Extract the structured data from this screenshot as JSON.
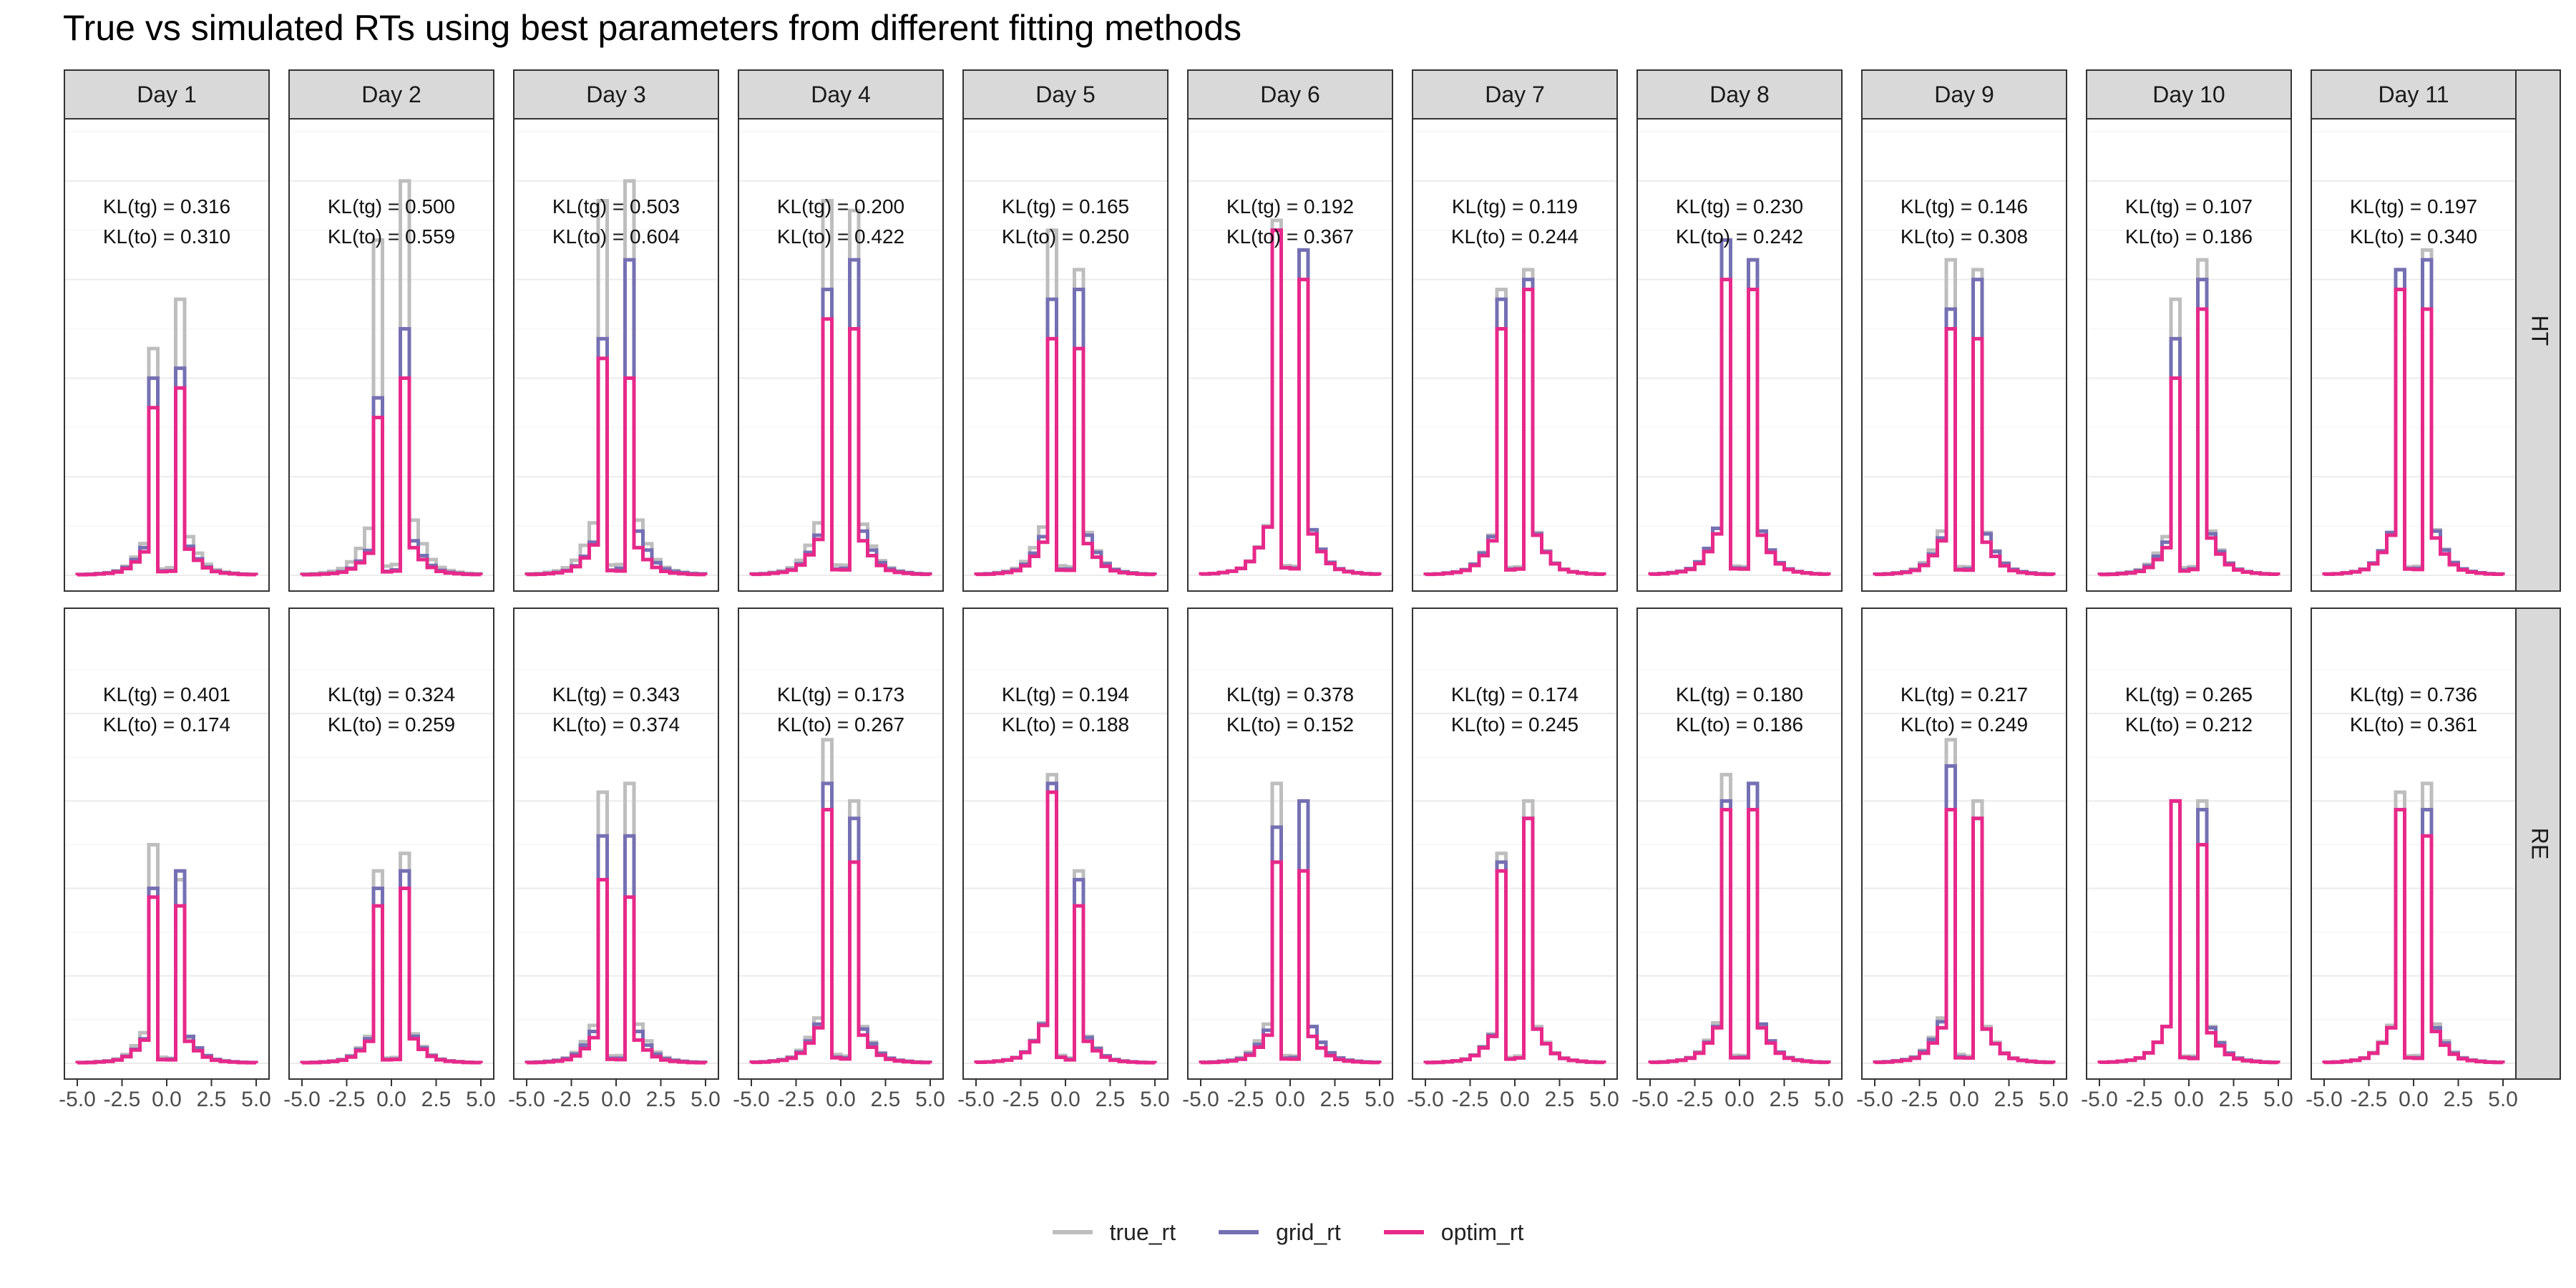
{
  "title": "True vs simulated RTs using best parameters from different fitting methods",
  "colors": {
    "true_rt": "#bebebe",
    "grid_rt": "#7570b3",
    "optim_rt": "#e7298a"
  },
  "legend": [
    {
      "key": "true_rt",
      "label": "true_rt"
    },
    {
      "key": "grid_rt",
      "label": "grid_rt"
    },
    {
      "key": "optim_rt",
      "label": "optim_rt"
    }
  ],
  "chart_data": {
    "type": "line",
    "facet_columns": [
      "Day 1",
      "Day 2",
      "Day 3",
      "Day 4",
      "Day 5",
      "Day 6",
      "Day 7",
      "Day 8",
      "Day 9",
      "Day 10",
      "Day 11"
    ],
    "facet_rows": [
      "HT",
      "RE"
    ],
    "x_ticks": [
      "-5.0",
      "-2.5",
      "0.0",
      "2.5",
      "5.0"
    ],
    "xlim": [
      -5,
      5
    ],
    "ylim": [
      0,
      0.45
    ],
    "bin_edges": [
      -5,
      -4.5,
      -4,
      -3.5,
      -3,
      -2.5,
      -2,
      -1.5,
      -1,
      -0.5,
      0,
      0.5,
      1,
      1.5,
      2,
      2.5,
      3,
      3.5,
      4,
      4.5,
      5
    ],
    "grid": true,
    "legend_position": "bottom",
    "series_names": [
      "true_rt",
      "grid_rt",
      "optim_rt"
    ],
    "kl_labels": {
      "HT": [
        [
          "KL(tg) = 0.316",
          "KL(to) = 0.310"
        ],
        [
          "KL(tg) = 0.500",
          "KL(to) = 0.559"
        ],
        [
          "KL(tg) = 0.503",
          "KL(to) = 0.604"
        ],
        [
          "KL(tg) = 0.200",
          "KL(to) = 0.422"
        ],
        [
          "KL(tg) = 0.165",
          "KL(to) = 0.250"
        ],
        [
          "KL(tg) = 0.192",
          "KL(to) = 0.367"
        ],
        [
          "KL(tg) = 0.119",
          "KL(to) = 0.244"
        ],
        [
          "KL(tg) = 0.230",
          "KL(to) = 0.242"
        ],
        [
          "KL(tg) = 0.146",
          "KL(to) = 0.308"
        ],
        [
          "KL(tg) = 0.107",
          "KL(to) = 0.186"
        ],
        [
          "KL(tg) = 0.197",
          "KL(to) = 0.340"
        ]
      ],
      "RE": [
        [
          "KL(tg) = 0.401",
          "KL(to) = 0.174"
        ],
        [
          "KL(tg) = 0.324",
          "KL(to) = 0.259"
        ],
        [
          "KL(tg) = 0.343",
          "KL(to) = 0.374"
        ],
        [
          "KL(tg) = 0.173",
          "KL(to) = 0.267"
        ],
        [
          "KL(tg) = 0.194",
          "KL(to) = 0.188"
        ],
        [
          "KL(tg) = 0.378",
          "KL(to) = 0.152"
        ],
        [
          "KL(tg) = 0.174",
          "KL(to) = 0.245"
        ],
        [
          "KL(tg) = 0.180",
          "KL(to) = 0.186"
        ],
        [
          "KL(tg) = 0.217",
          "KL(to) = 0.249"
        ],
        [
          "KL(tg) = 0.265",
          "KL(to) = 0.212"
        ],
        [
          "KL(tg) = 0.736",
          "KL(to) = 0.361"
        ]
      ]
    },
    "true_peaks": {
      "HT": [
        [
          0.23,
          0.28
        ],
        [
          0.34,
          0.4
        ],
        [
          0.38,
          0.4
        ],
        [
          0.38,
          0.37
        ],
        [
          0.35,
          0.31
        ],
        [
          0.36,
          0.33
        ],
        [
          0.29,
          0.31
        ],
        [
          0.34,
          0.32
        ],
        [
          0.32,
          0.31
        ],
        [
          0.28,
          0.32
        ],
        [
          0.31,
          0.33
        ]
      ],
      "RE": [
        [
          0.25,
          0.21
        ],
        [
          0.22,
          0.24
        ],
        [
          0.31,
          0.32
        ],
        [
          0.37,
          0.3
        ],
        [
          0.33,
          0.22
        ],
        [
          0.32,
          0.3
        ],
        [
          0.24,
          0.3
        ],
        [
          0.33,
          0.32
        ],
        [
          0.37,
          0.3
        ],
        [
          0.3,
          0.3
        ],
        [
          0.31,
          0.32
        ]
      ]
    },
    "grid_peaks": {
      "HT": [
        [
          0.2,
          0.21
        ],
        [
          0.18,
          0.25
        ],
        [
          0.24,
          0.32
        ],
        [
          0.29,
          0.32
        ],
        [
          0.28,
          0.29
        ],
        [
          0.35,
          0.33
        ],
        [
          0.28,
          0.3
        ],
        [
          0.34,
          0.32
        ],
        [
          0.27,
          0.3
        ],
        [
          0.24,
          0.3
        ],
        [
          0.31,
          0.32
        ]
      ],
      "RE": [
        [
          0.2,
          0.22
        ],
        [
          0.2,
          0.22
        ],
        [
          0.26,
          0.26
        ],
        [
          0.32,
          0.28
        ],
        [
          0.32,
          0.21
        ],
        [
          0.27,
          0.3
        ],
        [
          0.23,
          0.28
        ],
        [
          0.3,
          0.32
        ],
        [
          0.34,
          0.28
        ],
        [
          0.3,
          0.29
        ],
        [
          0.29,
          0.29
        ]
      ]
    },
    "optim_peaks": {
      "HT": [
        [
          0.17,
          0.19
        ],
        [
          0.16,
          0.2
        ],
        [
          0.22,
          0.2
        ],
        [
          0.26,
          0.25
        ],
        [
          0.24,
          0.23
        ],
        [
          0.35,
          0.3
        ],
        [
          0.25,
          0.29
        ],
        [
          0.3,
          0.29
        ],
        [
          0.25,
          0.24
        ],
        [
          0.2,
          0.27
        ],
        [
          0.29,
          0.27
        ]
      ],
      "RE": [
        [
          0.19,
          0.18
        ],
        [
          0.18,
          0.2
        ],
        [
          0.21,
          0.19
        ],
        [
          0.29,
          0.23
        ],
        [
          0.31,
          0.18
        ],
        [
          0.23,
          0.22
        ],
        [
          0.22,
          0.28
        ],
        [
          0.29,
          0.29
        ],
        [
          0.29,
          0.28
        ],
        [
          0.3,
          0.25
        ],
        [
          0.29,
          0.26
        ]
      ]
    }
  }
}
